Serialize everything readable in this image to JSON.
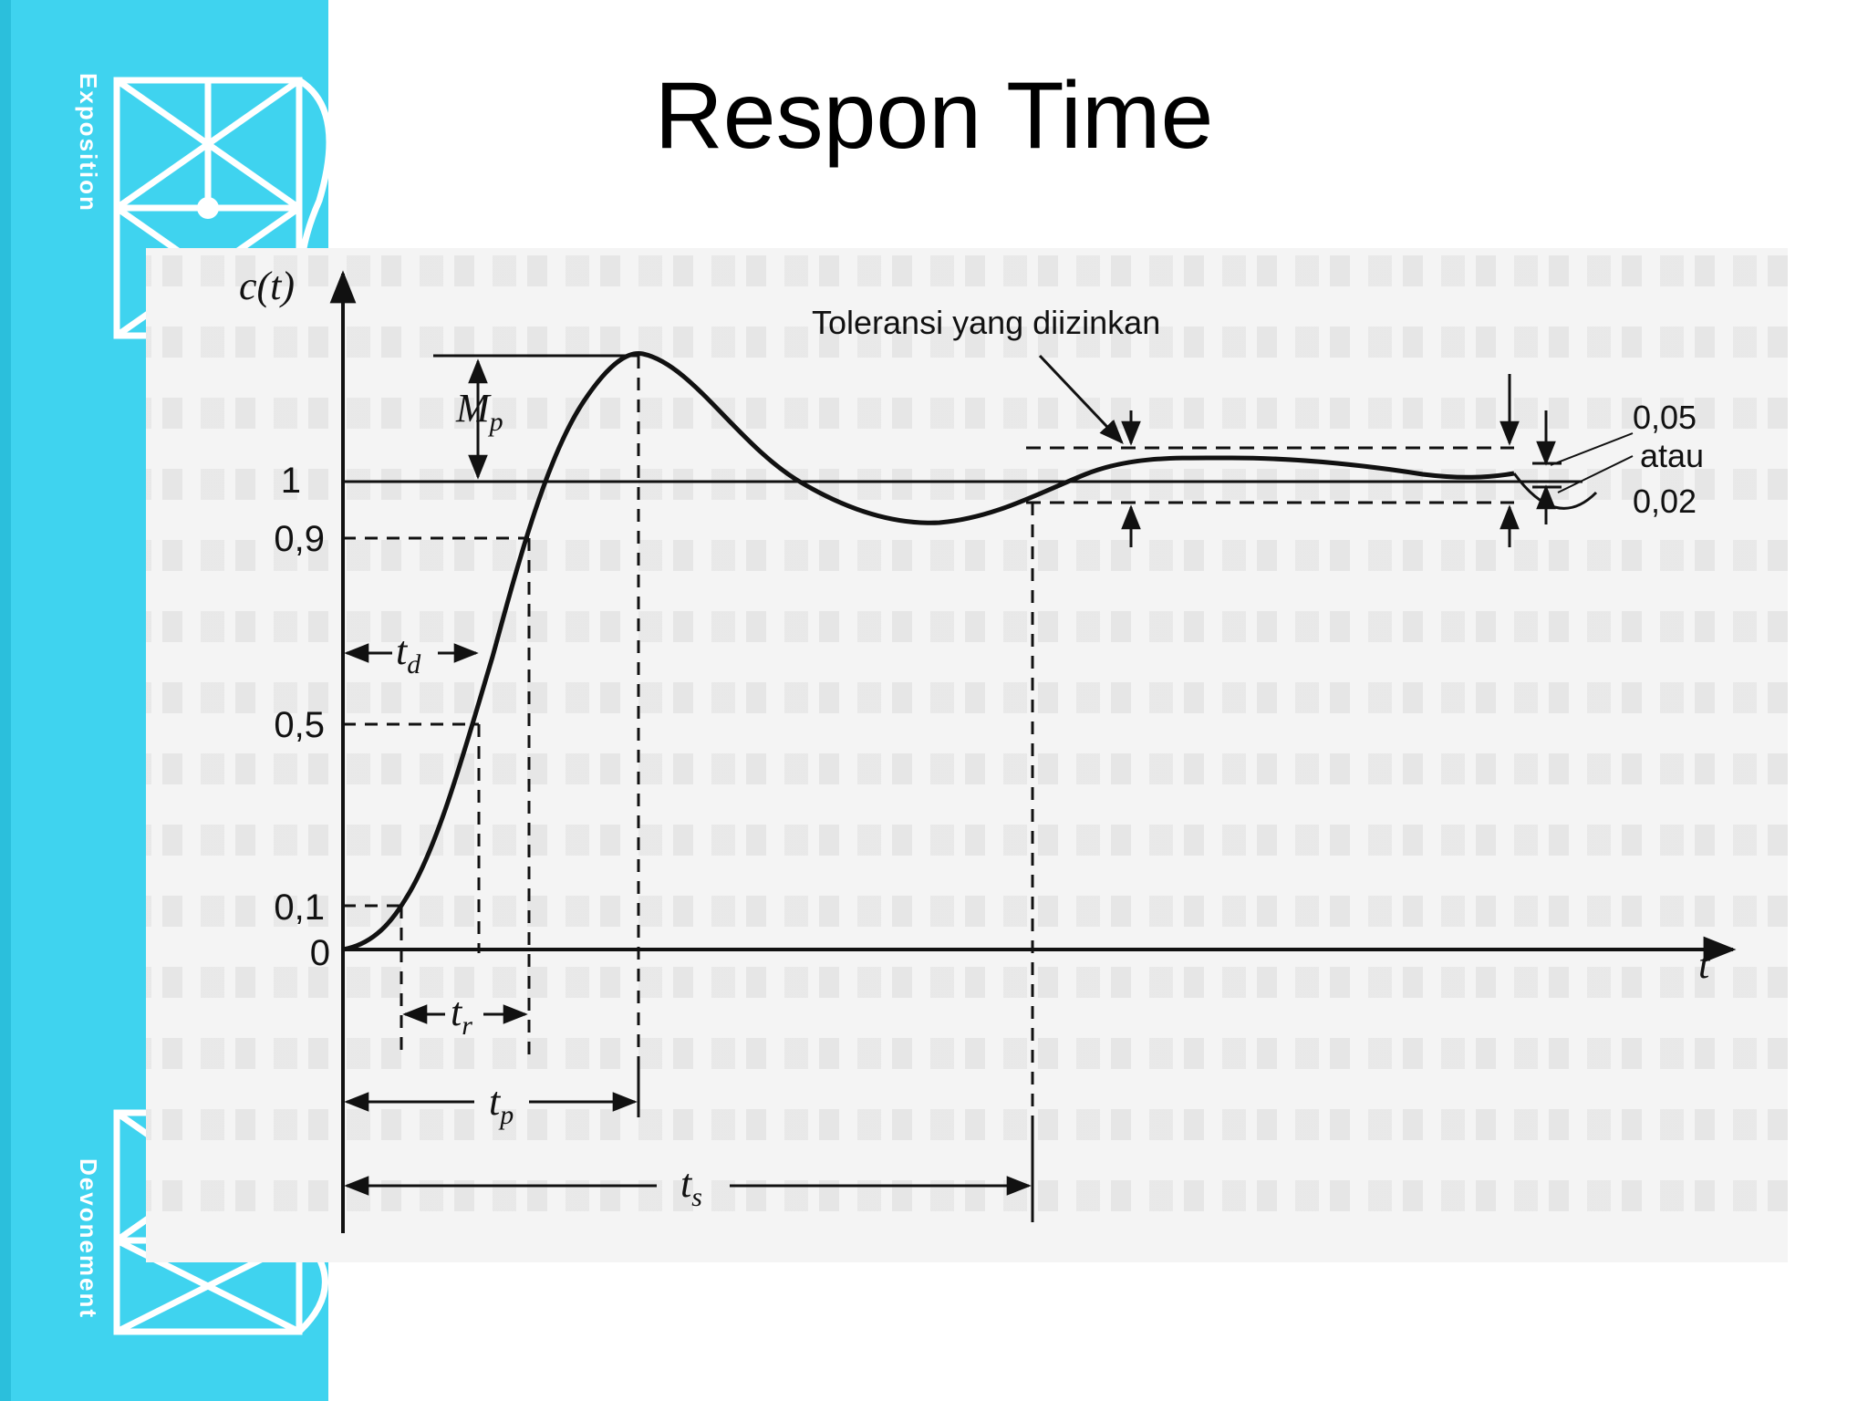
{
  "slide": {
    "title": "Respon Time",
    "sidebar": {
      "top_text": "Exposition",
      "bottom_text": "Devonement"
    }
  },
  "diagram": {
    "y_axis_label": "c(t)",
    "x_axis_label": "t",
    "y_ticks": [
      "0",
      "0,1",
      "0,5",
      "0,9",
      "1"
    ],
    "annotations": {
      "overshoot": "Mp",
      "delay_time": "td",
      "rise_time": "tr",
      "peak_time": "tp",
      "settling_time": "ts",
      "tolerance": "Toleransi yang diizinkan",
      "tol_high": "0,05",
      "tol_or": "atau",
      "tol_low": "0,02"
    }
  }
}
